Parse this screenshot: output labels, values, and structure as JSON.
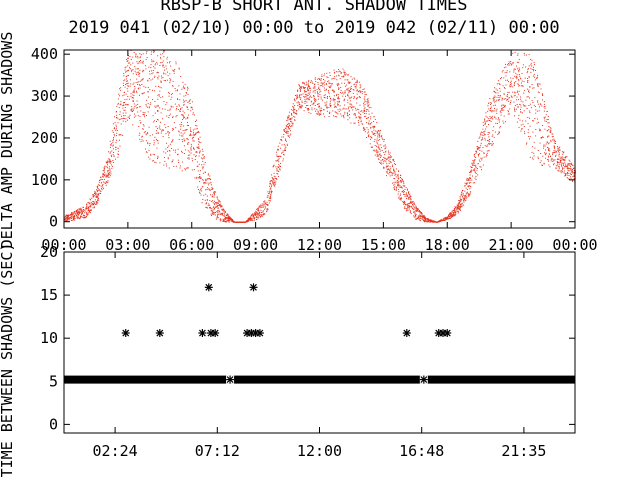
{
  "title": "RBSP-B SHORT ANT. SHADOW TIMES",
  "subtitle": "2019 041 (02/10) 00:00 to 2019 042 (02/11) 00:00",
  "colors": {
    "background": "#ffffff",
    "axes": "#000000",
    "amplitude": "#e8321e",
    "markers": "#000000"
  },
  "chart_data": [
    {
      "type": "scatter",
      "ylabel": "DELTA AMP DURING SHADOWS",
      "xlim": [
        "00:00",
        "24:00"
      ],
      "ylim": [
        -15,
        410
      ],
      "x_tick_labels": [
        "00:00",
        "03:00",
        "06:00",
        "09:00",
        "12:00",
        "15:00",
        "18:00",
        "21:00",
        "00:00"
      ],
      "y_tick_labels": [
        "0",
        "100",
        "200",
        "300",
        "400"
      ],
      "envelope": {
        "description_values_hours": [
          0,
          1,
          1.5,
          2,
          2.5,
          3,
          4,
          5,
          6,
          6.5,
          7,
          7.5,
          8,
          8.5,
          9,
          9.5,
          10,
          11,
          12,
          13,
          14,
          15,
          16,
          16.5,
          17,
          17.5,
          18,
          18.5,
          19,
          20,
          21,
          22,
          23,
          24
        ],
        "upper": [
          15,
          40,
          80,
          150,
          300,
          410,
          410,
          410,
          300,
          170,
          80,
          30,
          0,
          0,
          30,
          60,
          180,
          330,
          350,
          370,
          330,
          200,
          90,
          40,
          10,
          0,
          15,
          50,
          120,
          300,
          410,
          400,
          200,
          130
        ],
        "lower": [
          0,
          10,
          40,
          90,
          150,
          250,
          150,
          120,
          120,
          40,
          10,
          0,
          0,
          0,
          5,
          20,
          100,
          270,
          250,
          250,
          220,
          120,
          30,
          5,
          0,
          0,
          5,
          20,
          60,
          170,
          260,
          140,
          130,
          90
        ]
      }
    },
    {
      "type": "scatter",
      "ylabel": "TIME BETWEEN SHADOWS (SEC)",
      "xlim": [
        "00:00",
        "24:00"
      ],
      "ylim": [
        -1,
        20
      ],
      "x_tick_labels": [
        "02:24",
        "07:12",
        "12:00",
        "16:48",
        "21:35"
      ],
      "y_tick_labels": [
        "0",
        "5",
        "10",
        "15",
        "20"
      ],
      "baseline": {
        "y": 5.2,
        "x_ranges_hours": [
          [
            0,
            24
          ]
        ]
      },
      "gap_points_y5": [
        7.8,
        16.9
      ],
      "points": [
        {
          "x": 2.9,
          "y": 10.6
        },
        {
          "x": 4.5,
          "y": 10.6
        },
        {
          "x": 6.5,
          "y": 10.6
        },
        {
          "x": 6.8,
          "y": 15.9
        },
        {
          "x": 6.9,
          "y": 10.6
        },
        {
          "x": 7.1,
          "y": 10.6
        },
        {
          "x": 8.6,
          "y": 10.6
        },
        {
          "x": 8.8,
          "y": 10.6
        },
        {
          "x": 8.9,
          "y": 15.9
        },
        {
          "x": 9.0,
          "y": 10.6
        },
        {
          "x": 9.2,
          "y": 10.6
        },
        {
          "x": 16.1,
          "y": 10.6
        },
        {
          "x": 17.6,
          "y": 10.6
        },
        {
          "x": 17.8,
          "y": 10.6
        },
        {
          "x": 18.0,
          "y": 10.6
        }
      ]
    }
  ]
}
